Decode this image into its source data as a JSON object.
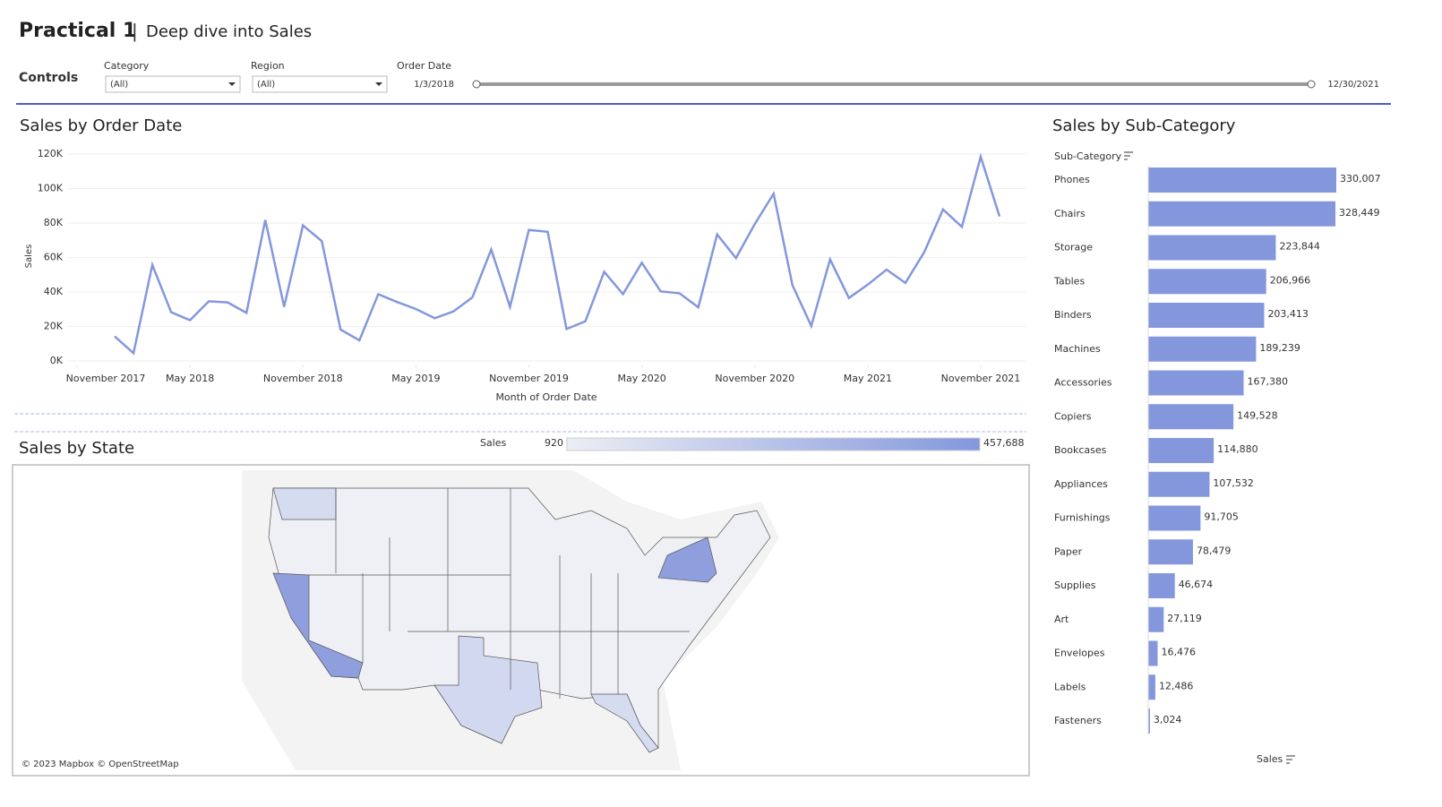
{
  "header": {
    "title": "Practical 1",
    "subtitle": "Deep dive into Sales"
  },
  "controls": {
    "label": "Controls",
    "category_label": "Category",
    "category_value": "(All)",
    "region_label": "Region",
    "region_value": "(All)",
    "date_label": "Order Date",
    "date_start": "1/3/2018",
    "date_end": "12/30/2021"
  },
  "chart_data": [
    {
      "type": "line",
      "title": "Sales by Order Date",
      "x_label": "Month of Order Date",
      "y_label": "Sales",
      "color": "#8497dd",
      "grid": true,
      "x": [
        "2018-01",
        "2018-02",
        "2018-03",
        "2018-04",
        "2018-05",
        "2018-06",
        "2018-07",
        "2018-08",
        "2018-09",
        "2018-10",
        "2018-11",
        "2018-12",
        "2019-01",
        "2019-02",
        "2019-03",
        "2019-04",
        "2019-05",
        "2019-06",
        "2019-07",
        "2019-08",
        "2019-09",
        "2019-10",
        "2019-11",
        "2019-12",
        "2020-01",
        "2020-02",
        "2020-03",
        "2020-04",
        "2020-05",
        "2020-06",
        "2020-07",
        "2020-08",
        "2020-09",
        "2020-10",
        "2020-11",
        "2020-12",
        "2021-01",
        "2021-02",
        "2021-03",
        "2021-04",
        "2021-05",
        "2021-06",
        "2021-07",
        "2021-08",
        "2021-09",
        "2021-10",
        "2021-11",
        "2021-12"
      ],
      "values": [
        14237,
        4520,
        55691,
        28295,
        23648,
        34595,
        33946,
        27909,
        81777,
        31453,
        78629,
        69546,
        18174,
        11951,
        38726,
        34195,
        30132,
        24797,
        28765,
        36898,
        64596,
        31405,
        75973,
        74920,
        18542,
        22979,
        51716,
        38751,
        56988,
        40344,
        39262,
        31115,
        73410,
        59688,
        79412,
        96999,
        43971,
        20301,
        58872,
        36522,
        44261,
        52982,
        45264,
        63121,
        87867,
        77777,
        118448,
        83829
      ],
      "xlim": [
        "2017-11",
        "2022-01"
      ],
      "xticks": [
        {
          "value": "2017-11",
          "label": "November 2017"
        },
        {
          "value": "2018-05",
          "label": "May 2018"
        },
        {
          "value": "2018-11",
          "label": "November 2018"
        },
        {
          "value": "2019-05",
          "label": "May 2019"
        },
        {
          "value": "2019-11",
          "label": "November 2019"
        },
        {
          "value": "2020-05",
          "label": "May 2020"
        },
        {
          "value": "2020-11",
          "label": "November 2020"
        },
        {
          "value": "2021-05",
          "label": "May 2021"
        },
        {
          "value": "2021-11",
          "label": "November 2021"
        }
      ],
      "ylim": [
        0,
        120000
      ],
      "yticks": [
        {
          "value": 0,
          "label": "0K"
        },
        {
          "value": 20000,
          "label": "20K"
        },
        {
          "value": 40000,
          "label": "40K"
        },
        {
          "value": 60000,
          "label": "60K"
        },
        {
          "value": 80000,
          "label": "80K"
        },
        {
          "value": 100000,
          "label": "100K"
        },
        {
          "value": 120000,
          "label": "120K"
        }
      ]
    },
    {
      "type": "bar",
      "orientation": "horizontal",
      "title": "Sales by Sub-Category",
      "category_label": "Sub-Category",
      "value_label": "Sales",
      "color": "#8497dd",
      "categories": [
        "Phones",
        "Chairs",
        "Storage",
        "Tables",
        "Binders",
        "Machines",
        "Accessories",
        "Copiers",
        "Bookcases",
        "Appliances",
        "Furnishings",
        "Paper",
        "Supplies",
        "Art",
        "Envelopes",
        "Labels",
        "Fasteners"
      ],
      "values": [
        330007,
        328449,
        223844,
        206966,
        203413,
        189239,
        167380,
        149528,
        114880,
        107532,
        91705,
        78479,
        46674,
        27119,
        16476,
        12486,
        3024
      ],
      "value_labels": [
        "330,007",
        "328,449",
        "223,844",
        "206,966",
        "203,413",
        "189,239",
        "167,380",
        "149,528",
        "114,880",
        "107,532",
        "91,705",
        "78,479",
        "46,674",
        "27,119",
        "16,476",
        "12,486",
        "3,024"
      ]
    }
  ],
  "map": {
    "title": "Sales by State",
    "legend_title": "Sales",
    "legend_min": 920,
    "legend_max": {
      "value": 457688,
      "label": "457,688"
    },
    "attribution": "© 2023 Mapbox © OpenStreetMap"
  }
}
